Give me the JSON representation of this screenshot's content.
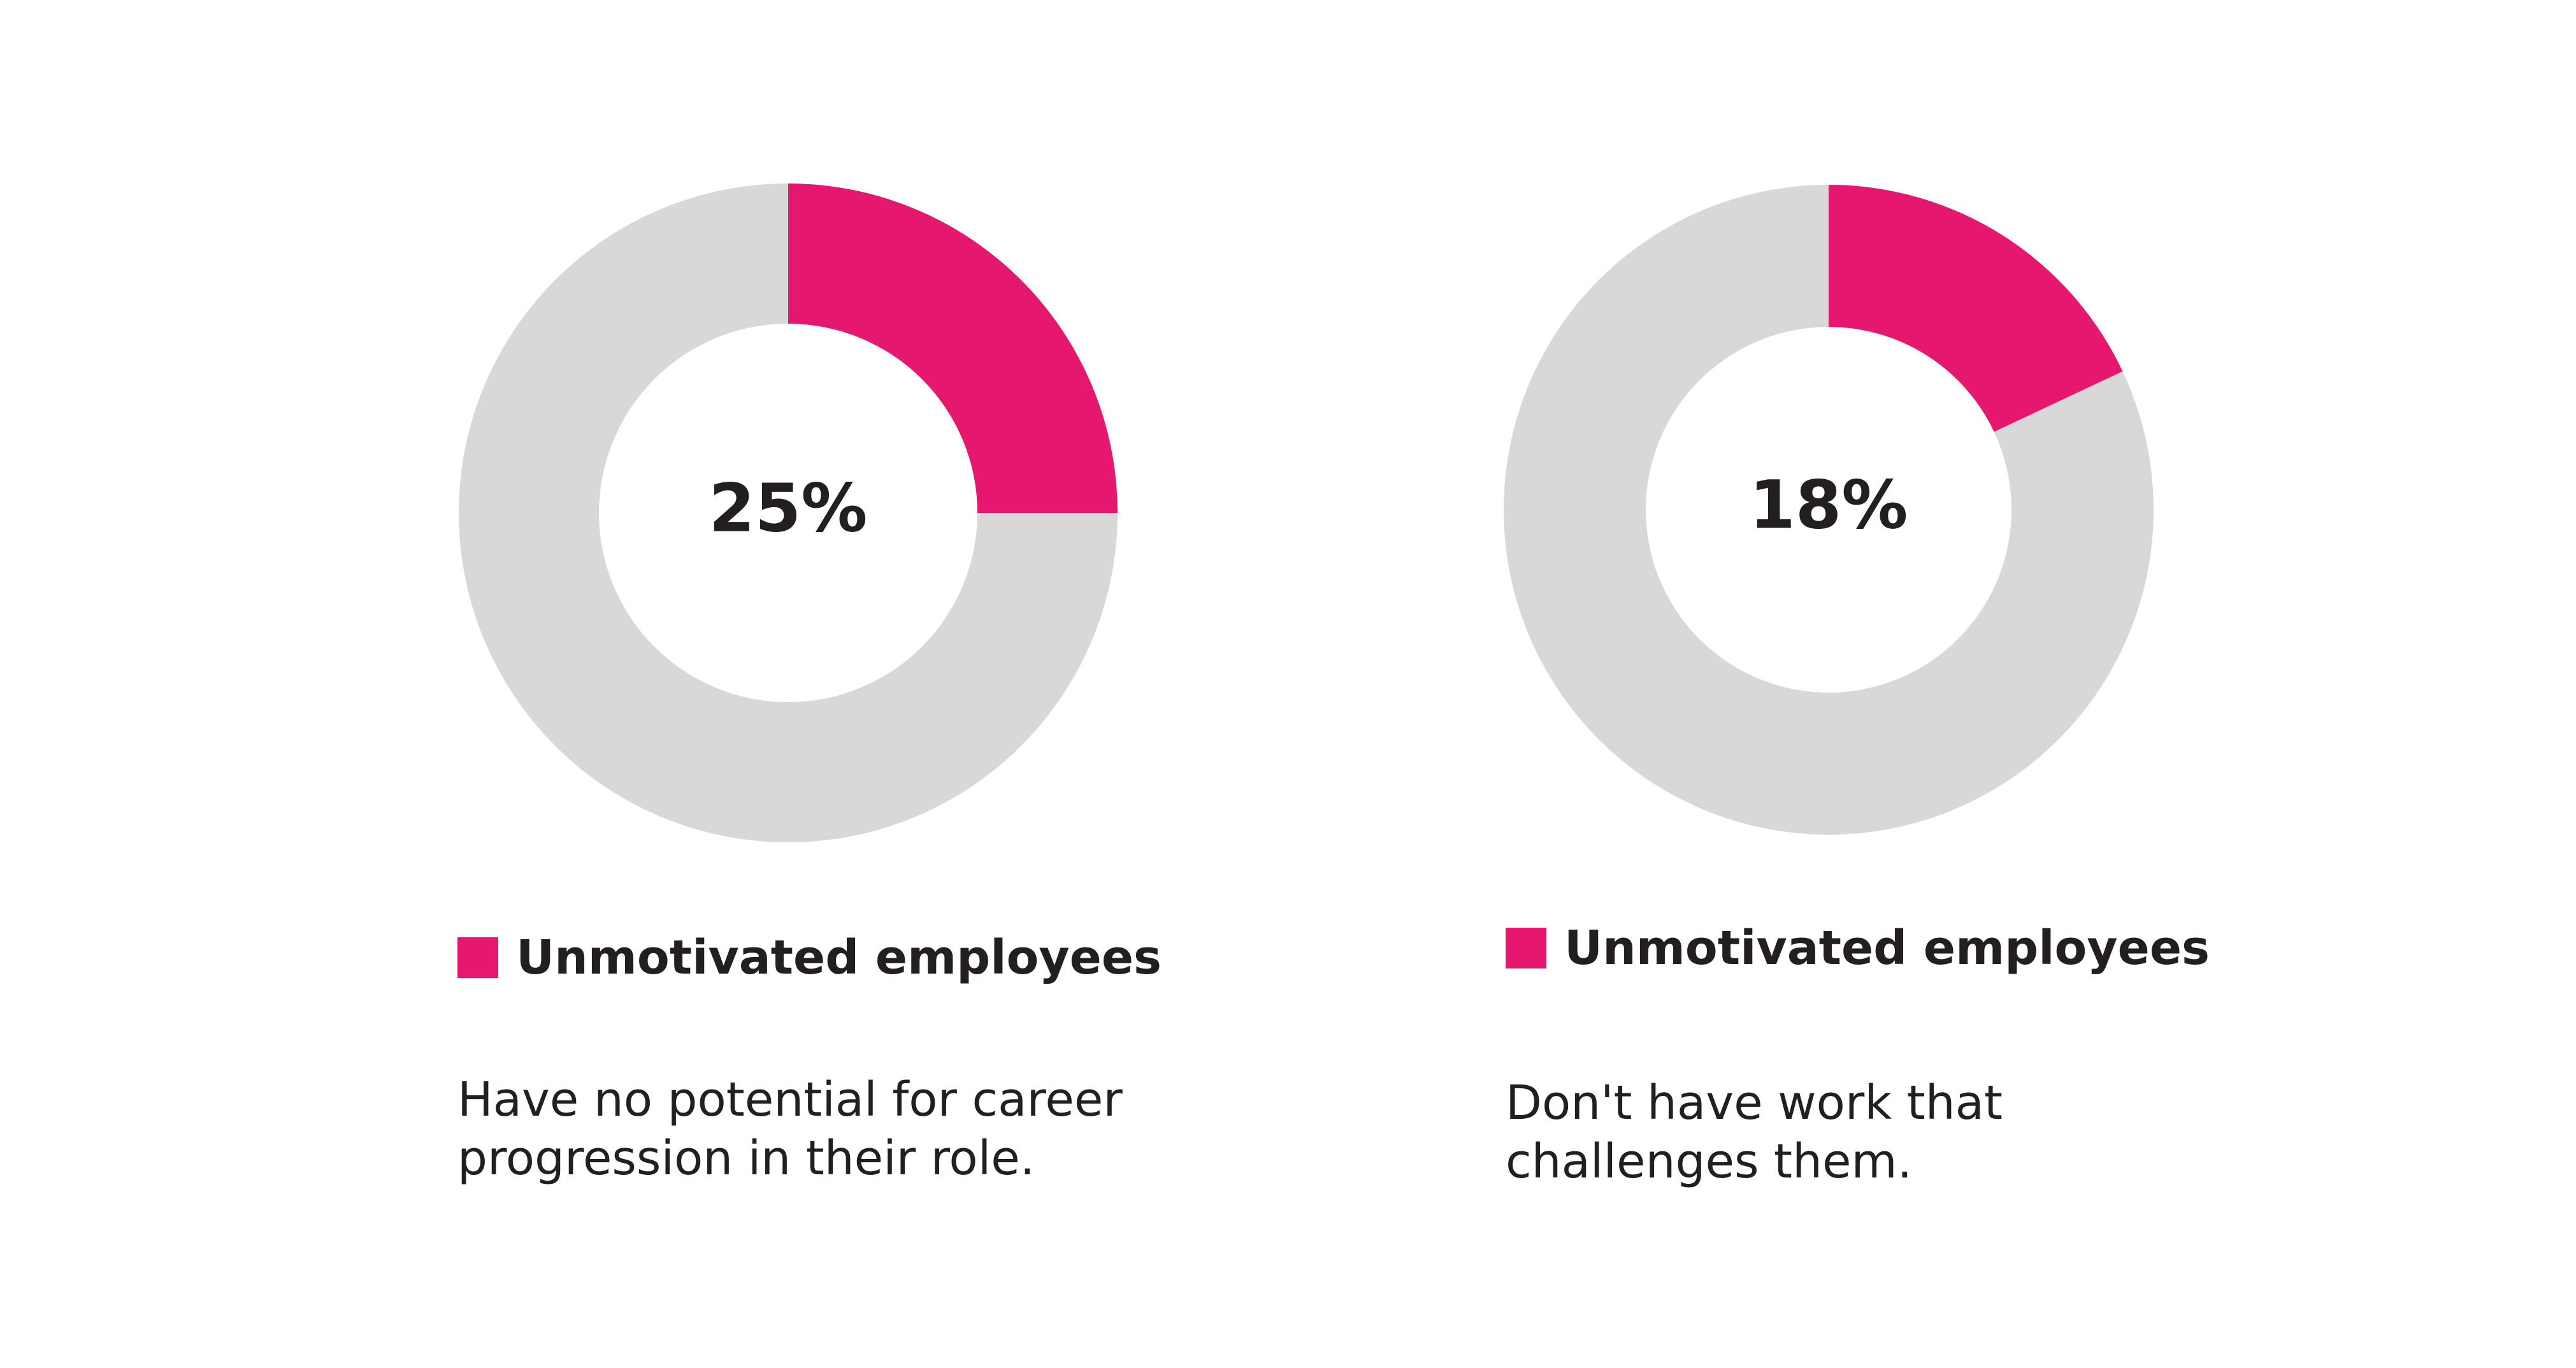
{
  "colors": {
    "highlight": "#e5176f",
    "remainder": "#d8d8d8",
    "text": "#231f20"
  },
  "chart_data": [
    {
      "type": "pie",
      "variant": "donut",
      "center_label": "25%",
      "slices": [
        {
          "label": "Unmotivated employees",
          "value": 25,
          "color": "#e5176f"
        },
        {
          "label": "",
          "value": 75,
          "color": "#d8d8d8"
        }
      ],
      "legend": {
        "label": "Unmotivated employees",
        "color": "#e5176f",
        "placement": "bottom-left"
      },
      "description_lines": [
        "Have no potential for career",
        "progression in their role."
      ]
    },
    {
      "type": "pie",
      "variant": "donut",
      "center_label": "18%",
      "slices": [
        {
          "label": "Unmotivated employees",
          "value": 18,
          "color": "#e5176f"
        },
        {
          "label": "",
          "value": 82,
          "color": "#d8d8d8"
        }
      ],
      "legend": {
        "label": "Unmotivated employees",
        "color": "#e5176f",
        "placement": "bottom-left"
      },
      "description_lines": [
        "Don't have work that",
        "challenges them."
      ]
    }
  ]
}
